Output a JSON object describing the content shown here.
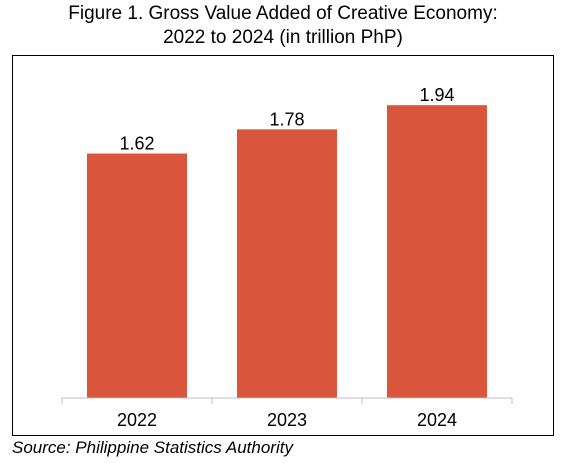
{
  "chart_data": {
    "type": "bar",
    "title_line1": "Figure 1. Gross Value Added of Creative Economy:",
    "title_line2": "2022 to 2024 (in trillion PhP)",
    "categories": [
      "2022",
      "2023",
      "2024"
    ],
    "values": [
      1.62,
      1.78,
      1.94
    ],
    "value_labels": [
      "1.62",
      "1.78",
      "1.94"
    ],
    "ylim": [
      0,
      2.16
    ],
    "grid": false,
    "legend": "none",
    "bar_color": "#d9553b",
    "source": "Source: Philippine Statistics Authority"
  }
}
